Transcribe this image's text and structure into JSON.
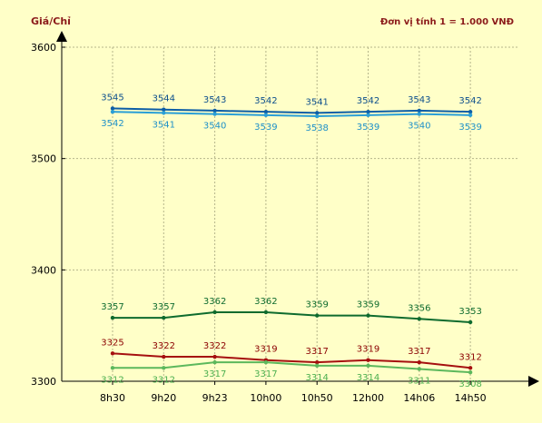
{
  "header": {
    "y_unit": "Giá/Chỉ",
    "unit_note": "Đơn vị tính 1 = 1.000 VNĐ"
  },
  "chart_data": {
    "type": "line",
    "title": "",
    "xlabel": "",
    "ylabel": "Giá/Chỉ",
    "categories": [
      "8h30",
      "9h20",
      "9h23",
      "10h00",
      "10h50",
      "12h00",
      "14h06",
      "14h50"
    ],
    "ylim": [
      3300,
      3600
    ],
    "yticks": [
      3300,
      3400,
      3500,
      3600
    ],
    "grid": true,
    "series": [
      {
        "color": "#0d5ea6",
        "label_color": "#0d4f8c",
        "label_pos": "above",
        "values": [
          3545,
          3544,
          3543,
          3542,
          3541,
          3542,
          3543,
          3542
        ]
      },
      {
        "color": "#2a9fd6",
        "label_color": "#1e90c8",
        "label_pos": "below",
        "values": [
          3542,
          3541,
          3540,
          3539,
          3538,
          3539,
          3540,
          3539
        ]
      },
      {
        "color": "#0e6b2e",
        "label_color": "#0e6b2e",
        "label_pos": "above",
        "values": [
          3357,
          3357,
          3362,
          3362,
          3359,
          3359,
          3356,
          3353
        ]
      },
      {
        "color": "#a50f0f",
        "label_color": "#8b0000",
        "label_pos": "above",
        "values": [
          3325,
          3322,
          3322,
          3319,
          3317,
          3319,
          3317,
          3312
        ]
      },
      {
        "color": "#5cb85c",
        "label_color": "#4caf50",
        "label_pos": "below",
        "values": [
          3312,
          3312,
          3317,
          3317,
          3314,
          3314,
          3311,
          3308
        ]
      }
    ]
  }
}
